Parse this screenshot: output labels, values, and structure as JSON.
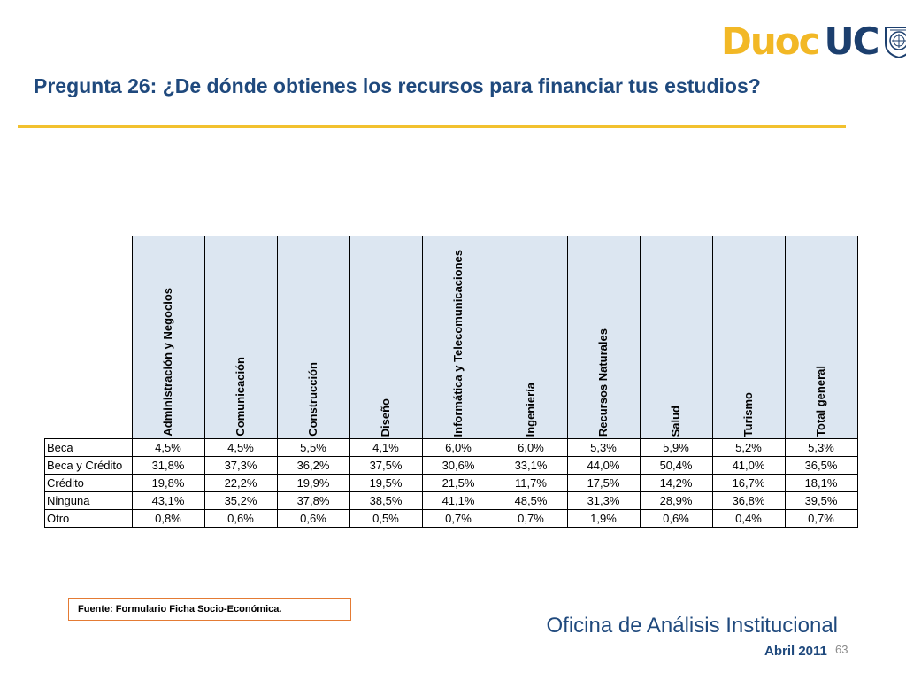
{
  "logo": {
    "part1": "Duoc",
    "part2": "UC"
  },
  "title": "Pregunta 26: ¿De dónde obtienes los recursos para financiar tus estudios?",
  "table": {
    "columns": [
      "Administración y Negocios",
      "Comunicación",
      "Construcción",
      "Diseño",
      "Informática y Telecomunicaciones",
      "Ingeniería",
      "Recursos Naturales",
      "Salud",
      "Turismo",
      "Total general"
    ],
    "rows": [
      {
        "label": "Beca",
        "values": [
          "4,5%",
          "4,5%",
          "5,5%",
          "4,1%",
          "6,0%",
          "6,0%",
          "5,3%",
          "5,9%",
          "5,2%",
          "5,3%"
        ]
      },
      {
        "label": "Beca y Crédito",
        "values": [
          "31,8%",
          "37,3%",
          "36,2%",
          "37,5%",
          "30,6%",
          "33,1%",
          "44,0%",
          "50,4%",
          "41,0%",
          "36,5%"
        ]
      },
      {
        "label": "Crédito",
        "values": [
          "19,8%",
          "22,2%",
          "19,9%",
          "19,5%",
          "21,5%",
          "11,7%",
          "17,5%",
          "14,2%",
          "16,7%",
          "18,1%"
        ]
      },
      {
        "label": "Ninguna",
        "values": [
          "43,1%",
          "35,2%",
          "37,8%",
          "38,5%",
          "41,1%",
          "48,5%",
          "31,3%",
          "28,9%",
          "36,8%",
          "39,5%"
        ]
      },
      {
        "label": "Otro",
        "values": [
          "0,8%",
          "0,6%",
          "0,6%",
          "0,5%",
          "0,7%",
          "0,7%",
          "1,9%",
          "0,6%",
          "0,4%",
          "0,7%"
        ]
      }
    ]
  },
  "source": "Fuente: Formulario Ficha Socio-Económica.",
  "footer": {
    "office": "Oficina de Análisis Institucional",
    "date": "Abril 2011",
    "page": "63"
  },
  "colors": {
    "title": "#1f497d",
    "rule": "#f2c12e",
    "header_fill": "#dce6f1",
    "logo_gold": "#f2b826",
    "logo_navy": "#1c3f6e",
    "source_border": "#e47b34"
  }
}
